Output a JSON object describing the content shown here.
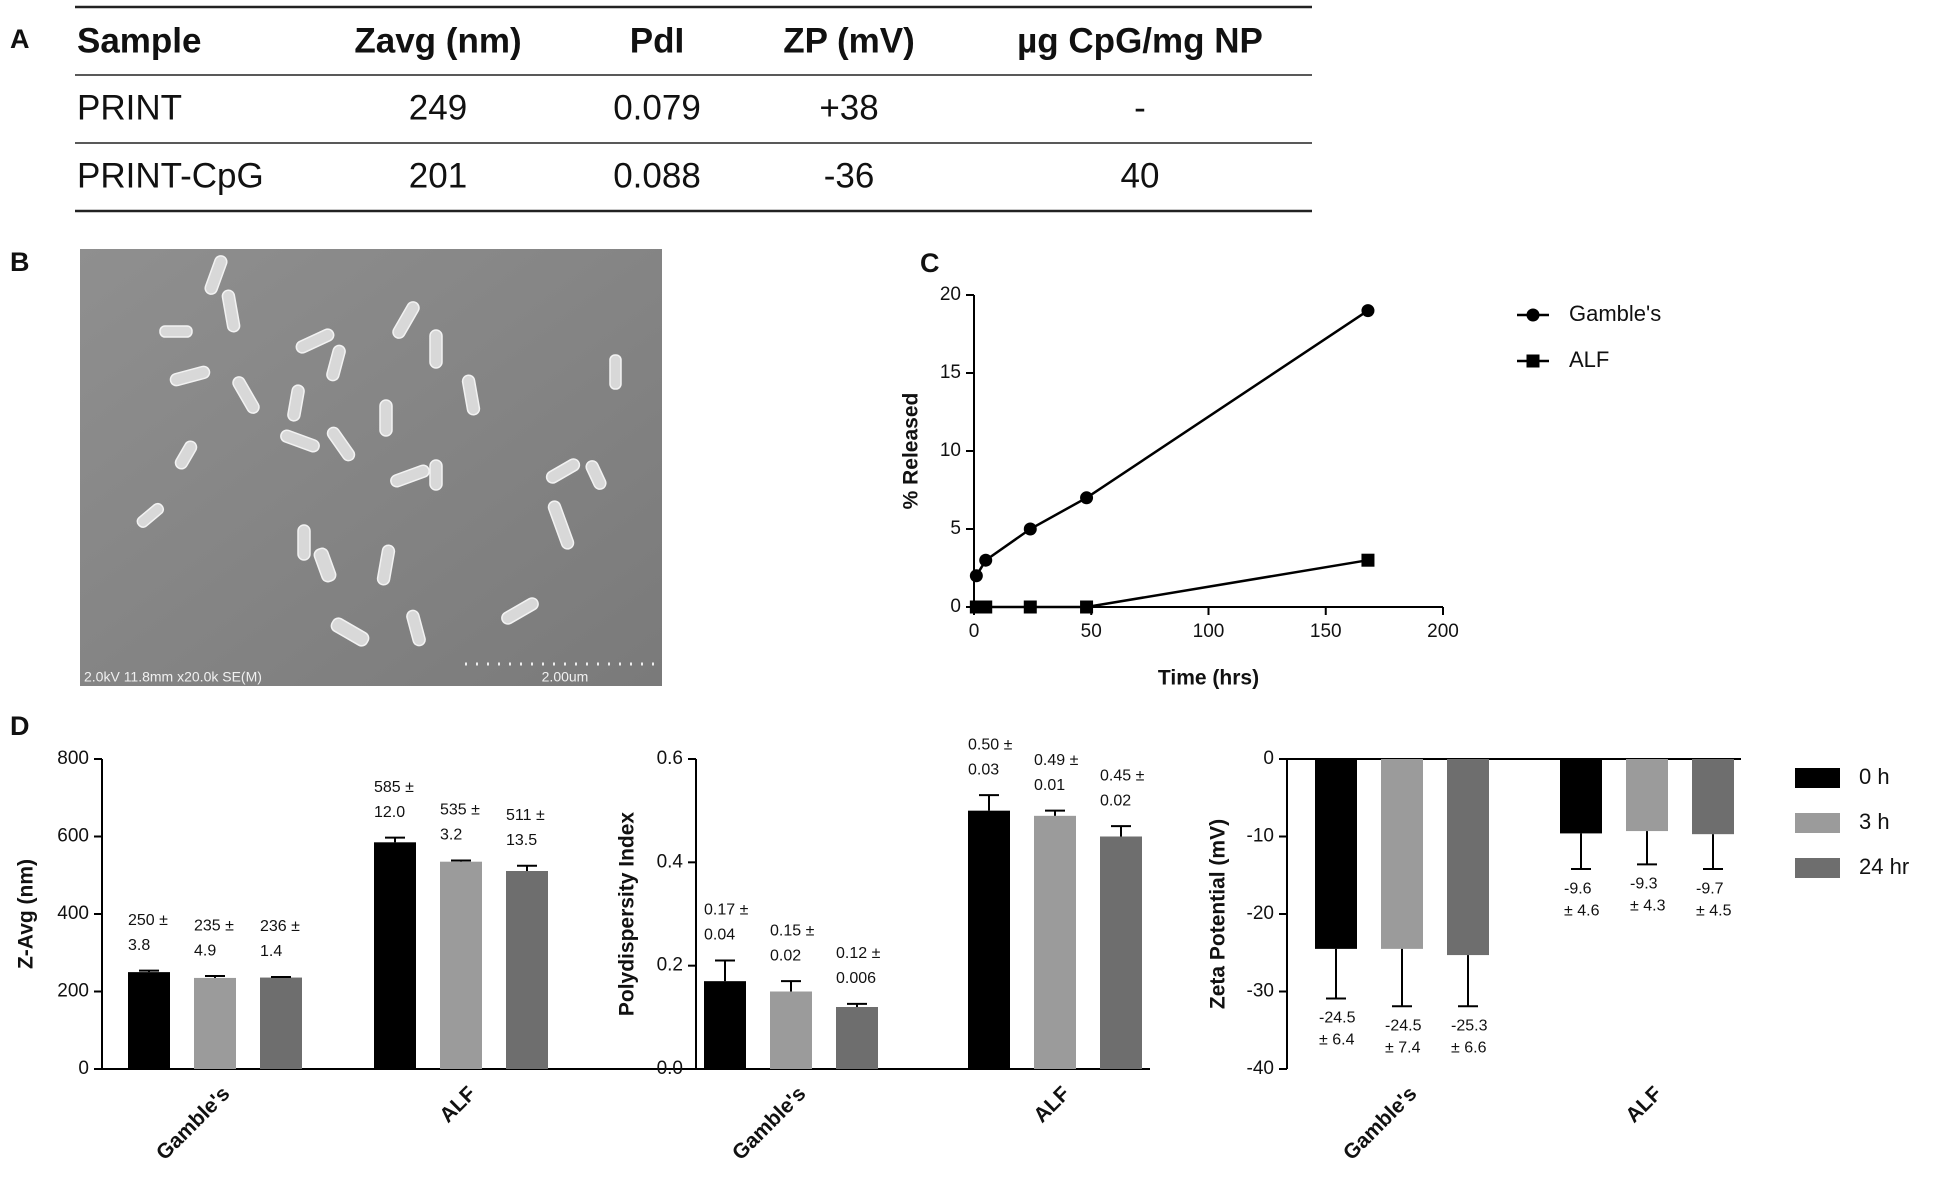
{
  "panel_labels": [
    "A",
    "B",
    "C",
    "D"
  ],
  "table": {
    "columns": [
      "Sample",
      "Zavg  (nm)",
      "PdI",
      "ZP (mV)",
      "µg CpG/mg NP"
    ],
    "rows": [
      [
        "PRINT",
        "249",
        "0.079",
        "+38",
        "-"
      ],
      [
        "PRINT-CpG",
        "201",
        "0.088",
        "-36",
        "40"
      ]
    ]
  },
  "image": {
    "caption": "2.0kV 11.8mm x20.0k SE(M)",
    "scale_bar": "2.00um"
  },
  "chart_data": [
    {
      "type": "line",
      "xlabel": "Time (hrs)",
      "ylabel": "% Released",
      "x": [
        1,
        5,
        24,
        48,
        168
      ],
      "series": [
        {
          "name": "Gamble's",
          "color": "#000000",
          "marker": "circle",
          "values": [
            2,
            3,
            5,
            7,
            19
          ]
        },
        {
          "name": "ALF",
          "color": "#000000",
          "marker": "square",
          "values": [
            0,
            0,
            0,
            0,
            3
          ]
        }
      ],
      "xlim": [
        0,
        200
      ],
      "xticks": [
        0,
        50,
        100,
        150,
        200
      ],
      "ylim": [
        0,
        20
      ],
      "yticks": [
        0,
        5,
        10,
        15,
        20
      ],
      "legend": "right"
    },
    {
      "type": "bar",
      "ylabel": "Z-Avg (nm)",
      "categories": [
        "Gamble's",
        "ALF"
      ],
      "series": [
        {
          "color": "#000000",
          "values": [
            250,
            585
          ],
          "errors": [
            3.8,
            12.0
          ],
          "value_labels": [
            "250 ±",
            "585 ±"
          ],
          "error_labels": [
            "3.8",
            "12.0"
          ]
        },
        {
          "color": "#9b9b9b",
          "values": [
            235,
            535
          ],
          "errors": [
            4.9,
            3.2
          ],
          "value_labels": [
            "235 ±",
            "535 ±"
          ],
          "error_labels": [
            "4.9",
            "3.2"
          ]
        },
        {
          "color": "#6e6e6e",
          "values": [
            236,
            511
          ],
          "errors": [
            1.4,
            13.5
          ],
          "value_labels": [
            "236 ±",
            "511 ±"
          ],
          "error_labels": [
            "1.4",
            "13.5"
          ]
        }
      ],
      "ylim": [
        0,
        800
      ],
      "yticks": [
        0,
        200,
        400,
        600,
        800
      ]
    },
    {
      "type": "bar",
      "ylabel": "Polydispersity Index",
      "categories": [
        "Gamble's",
        "ALF"
      ],
      "series": [
        {
          "color": "#000000",
          "values": [
            0.17,
            0.5
          ],
          "errors": [
            0.04,
            0.03
          ],
          "value_labels": [
            "0.17 ±",
            "0.50 ±"
          ],
          "error_labels": [
            "0.04",
            "0.03"
          ]
        },
        {
          "color": "#9b9b9b",
          "values": [
            0.15,
            0.49
          ],
          "errors": [
            0.02,
            0.01
          ],
          "value_labels": [
            "0.15 ±",
            "0.49 ±"
          ],
          "error_labels": [
            "0.02",
            "0.01"
          ]
        },
        {
          "color": "#6e6e6e",
          "values": [
            0.12,
            0.45
          ],
          "errors": [
            0.006,
            0.02
          ],
          "value_labels": [
            "0.12 ±",
            "0.45 ±"
          ],
          "error_labels": [
            "0.006",
            "0.02"
          ]
        }
      ],
      "ylim": [
        0,
        0.6
      ],
      "yticks": [
        {
          "value": 0,
          "label": "0.0"
        },
        0.2,
        0.4,
        0.6
      ]
    },
    {
      "type": "bar",
      "ylabel": "Zeta  Potential  (mV)",
      "categories": [
        "Gamble's",
        "ALF"
      ],
      "series": [
        {
          "name": "0 h",
          "color": "#000000",
          "values": [
            -24.5,
            -9.6
          ],
          "errors": [
            6.4,
            4.6
          ],
          "value_labels": [
            "-24.5",
            "-9.6"
          ],
          "error_labels": [
            "± 6.4",
            "± 4.6"
          ]
        },
        {
          "name": "3 h",
          "color": "#9b9b9b",
          "values": [
            -24.5,
            -9.3
          ],
          "errors": [
            7.4,
            4.3
          ],
          "value_labels": [
            "-24.5",
            "-9.3"
          ],
          "error_labels": [
            "± 7.4",
            "± 4.3"
          ]
        },
        {
          "name": "24 hr",
          "color": "#6e6e6e",
          "values": [
            -25.3,
            -9.7
          ],
          "errors": [
            6.6,
            4.5
          ],
          "value_labels": [
            "-25.3",
            "-9.7"
          ],
          "error_labels": [
            "± 6.6",
            "± 4.5"
          ]
        }
      ],
      "ylim": [
        -40,
        0
      ],
      "yticks": [
        -40,
        -30,
        -20,
        -10,
        0
      ],
      "legend": "right"
    }
  ]
}
